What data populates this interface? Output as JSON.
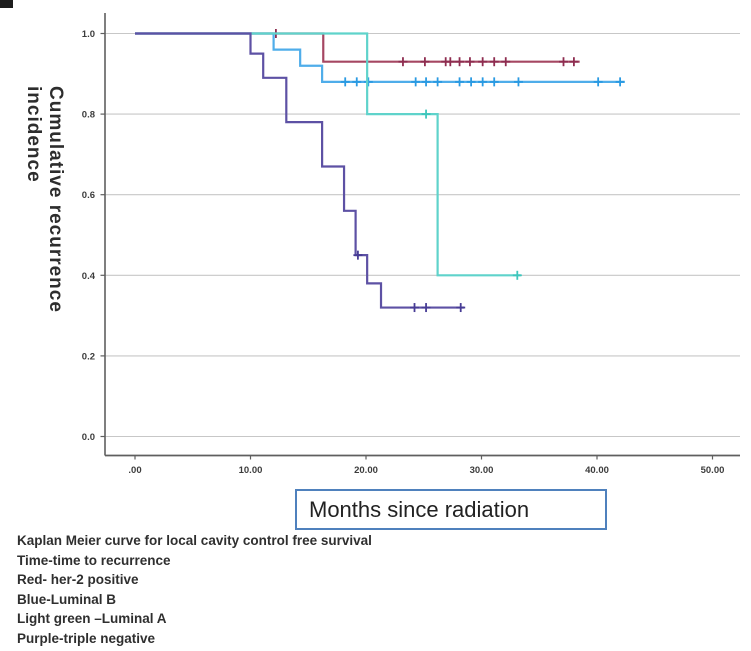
{
  "page": {
    "background": "#ffffff"
  },
  "chart_data": {
    "type": "line",
    "subtype": "kaplan-meier-step",
    "title": "",
    "xlabel": "Months since radiation",
    "ylabel": "Cumulative recurrence incidence",
    "ylabel_lines": [
      "Cumulative recurrence",
      "incidence"
    ],
    "xlim": [
      -2.5,
      53
    ],
    "ylim": [
      0.0,
      1.05
    ],
    "grid": "horizontal",
    "gridline_color": "#c7c7c7",
    "axis_color": "#5f5f5f",
    "tick_label_color": "#3c3c3c",
    "xticks": [
      {
        "label": ".00",
        "value": 0
      },
      {
        "label": "10.00",
        "value": 10
      },
      {
        "label": "20.00",
        "value": 20
      },
      {
        "label": "30.00",
        "value": 30
      },
      {
        "label": "40.00",
        "value": 40
      },
      {
        "label": "50.00",
        "value": 50
      }
    ],
    "yticks": [
      {
        "label": "0.0",
        "value": 0.0
      },
      {
        "label": "0.2",
        "value": 0.2
      },
      {
        "label": "0.4",
        "value": 0.4
      },
      {
        "label": "0.6",
        "value": 0.6
      },
      {
        "label": "0.8",
        "value": 0.8
      },
      {
        "label": "1.0",
        "value": 1.0
      }
    ],
    "series": [
      {
        "key": "her2-positive",
        "name": "her-2 positive",
        "legend_color_word": "Red",
        "color": "#a54762",
        "censor_color": "#8e2d50",
        "points": [
          [
            0,
            1.0
          ],
          [
            16.3,
            0.93
          ]
        ],
        "end": 38.5,
        "censors": [
          [
            12.2,
            1.0
          ],
          [
            23.2,
            0.93
          ],
          [
            25.1,
            0.93
          ],
          [
            26.9,
            0.93
          ],
          [
            27.3,
            0.93
          ],
          [
            28.1,
            0.93
          ],
          [
            29.0,
            0.93
          ],
          [
            30.1,
            0.93
          ],
          [
            31.1,
            0.93
          ],
          [
            32.1,
            0.93
          ],
          [
            37.1,
            0.93
          ],
          [
            38.0,
            0.93
          ]
        ]
      },
      {
        "key": "luminal-b",
        "name": "Luminal B",
        "legend_color_word": "Blue",
        "color": "#4fadea",
        "censor_color": "#2a9ae2",
        "points": [
          [
            0,
            1.0
          ],
          [
            12.0,
            0.96
          ],
          [
            14.3,
            0.92
          ],
          [
            16.2,
            0.88
          ]
        ],
        "end": 42.4,
        "censors": [
          [
            18.2,
            0.88
          ],
          [
            19.2,
            0.88
          ],
          [
            20.2,
            0.88
          ],
          [
            24.3,
            0.88
          ],
          [
            25.2,
            0.88
          ],
          [
            26.2,
            0.88
          ],
          [
            28.1,
            0.88
          ],
          [
            29.1,
            0.88
          ],
          [
            30.1,
            0.88
          ],
          [
            31.1,
            0.88
          ],
          [
            33.2,
            0.88
          ],
          [
            40.1,
            0.88
          ],
          [
            42.0,
            0.88
          ]
        ]
      },
      {
        "key": "luminal-a",
        "name": "Luminal A",
        "legend_color_word": "Light green",
        "color": "#5fd3cb",
        "censor_color": "#3ec6bc",
        "points": [
          [
            0,
            1.0
          ],
          [
            20.1,
            0.8
          ],
          [
            26.2,
            0.4
          ]
        ],
        "end": 33.4,
        "censors": [
          [
            25.2,
            0.8
          ],
          [
            33.1,
            0.4
          ]
        ]
      },
      {
        "key": "triple-negative",
        "name": "triple negative",
        "legend_color_word": "Purple",
        "color": "#5d51a4",
        "censor_color": "#473c95",
        "points": [
          [
            0,
            1.0
          ],
          [
            10.0,
            0.95
          ],
          [
            11.1,
            0.89
          ],
          [
            13.1,
            0.78
          ],
          [
            16.2,
            0.67
          ],
          [
            18.1,
            0.56
          ],
          [
            19.1,
            0.45
          ],
          [
            20.1,
            0.38
          ],
          [
            21.3,
            0.32
          ]
        ],
        "end": 28.5,
        "censors": [
          [
            19.3,
            0.45
          ],
          [
            24.2,
            0.32
          ],
          [
            25.2,
            0.32
          ],
          [
            28.2,
            0.32
          ]
        ]
      }
    ]
  },
  "xlabel_box": {
    "text": "Months since radiation",
    "border_color": "#4f81bd"
  },
  "caption": {
    "lines": [
      "Kaplan Meier curve for local cavity control free survival",
      "Time-time to recurrence",
      "Red- her-2 positive",
      "Blue-Luminal B",
      "Light green –Luminal A",
      "Purple-triple negative"
    ]
  }
}
